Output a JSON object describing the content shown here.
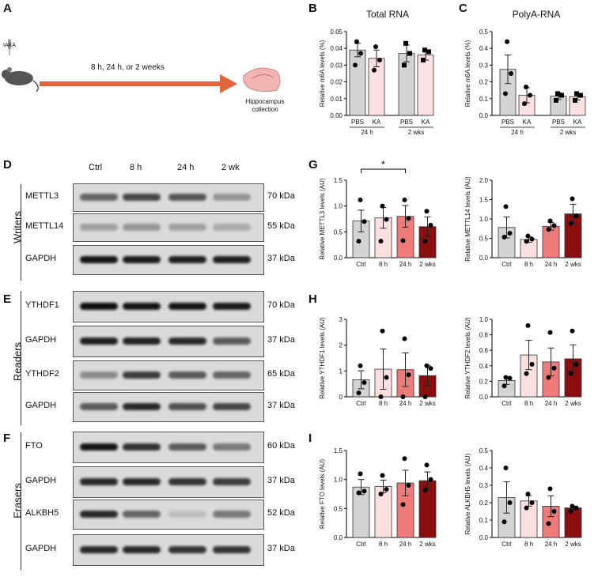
{
  "panels": {
    "a": "A",
    "b": "B",
    "c": "C",
    "d": "D",
    "e": "E",
    "f": "F",
    "g": "G",
    "h": "H",
    "i": "I"
  },
  "schematic": {
    "injection": "IAKA",
    "timepoints": "8 h, 24 h, or 2 weeks",
    "endpoint": "Hippocampus collection",
    "colors": {
      "arrow": "#e0643c",
      "brain": "#f1b5b1",
      "mouse": "#555555"
    }
  },
  "blots": {
    "lanes": [
      "Ctrl",
      "8 h",
      "24 h",
      "2 wk"
    ],
    "groups": [
      "Writers",
      "Readers",
      "Erasers"
    ],
    "rows": [
      {
        "name": "METTL3",
        "kda": "70 kDa",
        "intensity": [
          0.55,
          0.7,
          0.62,
          0.3
        ]
      },
      {
        "name": "METTL14",
        "kda": "55 kDa",
        "intensity": [
          0.25,
          0.3,
          0.25,
          0.2
        ]
      },
      {
        "name": "GAPDH",
        "kda": "37 kDa",
        "intensity": [
          0.95,
          0.92,
          0.9,
          0.9
        ]
      },
      {
        "name": "YTHDF1",
        "kda": "70 kDa",
        "intensity": [
          0.98,
          0.95,
          0.95,
          0.92
        ]
      },
      {
        "name": "GAPDH",
        "kda": "37 kDa",
        "intensity": [
          0.9,
          0.88,
          0.85,
          0.6
        ]
      },
      {
        "name": "YTHDF2",
        "kda": "65 kDa",
        "intensity": [
          0.35,
          0.75,
          0.6,
          0.55
        ]
      },
      {
        "name": "GAPDH",
        "kda": "37 kDa",
        "intensity": [
          0.6,
          0.85,
          0.65,
          0.7
        ]
      },
      {
        "name": "FTO",
        "kda": "60 kDa",
        "intensity": [
          0.95,
          0.8,
          0.6,
          0.45
        ]
      },
      {
        "name": "GAPDH",
        "kda": "37 kDa",
        "intensity": [
          0.85,
          0.85,
          0.8,
          0.75
        ]
      },
      {
        "name": "ALKBH5",
        "kda": "52 kDa",
        "intensity": [
          0.85,
          0.55,
          0.1,
          0.45
        ]
      },
      {
        "name": "GAPDH",
        "kda": "37 kDa",
        "intensity": [
          0.85,
          0.85,
          0.8,
          0.8
        ]
      }
    ]
  },
  "chart_data": [
    {
      "id": "total-rna",
      "type": "bar",
      "title": "Total RNA",
      "ylabel": "Relative m6A levels (%)",
      "categories": [
        "PBS",
        "KA",
        "PBS",
        "KA"
      ],
      "groups": [
        "24 h",
        "2 wks"
      ],
      "values": [
        0.039,
        0.034,
        0.037,
        0.036
      ],
      "errors": [
        0.004,
        0.005,
        0.005,
        0.003
      ],
      "points": [
        [
          0.044,
          0.037,
          0.03
        ],
        [
          0.041,
          0.033,
          0.027
        ],
        [
          0.043,
          0.037,
          0.03
        ],
        [
          0.039,
          0.038,
          0.033
        ]
      ],
      "colors": [
        "#d3d3d3",
        "#fbe1e1",
        "#d3d3d3",
        "#fbe1e1"
      ],
      "markers": [
        "circle",
        "circle",
        "square",
        "square"
      ],
      "ylim": [
        0,
        0.05
      ],
      "yticks": [
        "0.00",
        "0.01",
        "0.02",
        "0.03",
        "0.04",
        "0.05"
      ]
    },
    {
      "id": "polya-rna",
      "type": "bar",
      "title": "PolyA-RNA",
      "ylabel": "Relative m6A levels (%)",
      "categories": [
        "PBS",
        "KA",
        "PBS",
        "KA"
      ],
      "groups": [
        "24 h",
        "2 wks"
      ],
      "values": [
        0.275,
        0.12,
        0.115,
        0.112
      ],
      "errors": [
        0.085,
        0.045,
        0.02,
        0.02
      ],
      "points": [
        [
          0.44,
          0.25,
          0.13
        ],
        [
          0.17,
          0.12,
          0.07
        ],
        [
          0.13,
          0.12,
          0.09
        ],
        [
          0.13,
          0.12,
          0.09
        ]
      ],
      "colors": [
        "#d3d3d3",
        "#fbe1e1",
        "#d3d3d3",
        "#fbe1e1"
      ],
      "markers": [
        "circle",
        "circle",
        "square",
        "square"
      ],
      "ylim": [
        0,
        0.5
      ],
      "yticks": [
        "0.0",
        "0.1",
        "0.2",
        "0.3",
        "0.4",
        "0.5"
      ]
    },
    {
      "id": "mettl3",
      "type": "bar",
      "ylabel": "Relative METTL3 levels (AU)",
      "categories": [
        "Ctrl",
        "8 h",
        "24 h",
        "2 wks"
      ],
      "values": [
        0.71,
        0.77,
        0.8,
        0.6
      ],
      "errors": [
        0.21,
        0.2,
        0.21,
        0.19
      ],
      "points": [
        [
          1.12,
          0.7,
          0.32
        ],
        [
          1.0,
          0.74,
          0.32
        ],
        [
          1.12,
          0.76,
          0.33
        ],
        [
          0.9,
          0.63,
          0.32
        ]
      ],
      "colors": [
        "#d3d3d3",
        "#fce0e0",
        "#ee7a79",
        "#8b0d0d"
      ],
      "ylim": [
        0,
        1.5
      ],
      "yticks": [
        "0.0",
        "0.5",
        "1.0",
        "1.5"
      ],
      "significance": {
        "label": "*",
        "from": 0,
        "to": 2
      }
    },
    {
      "id": "mettl14",
      "type": "bar",
      "ylabel": "Relative METTL14 levels (AU)",
      "categories": [
        "Ctrl",
        "8 h",
        "24 h",
        "2 wks"
      ],
      "values": [
        0.78,
        0.47,
        0.81,
        1.13
      ],
      "errors": [
        0.27,
        0.07,
        0.1,
        0.25
      ],
      "points": [
        [
          1.32,
          0.63,
          0.53
        ],
        [
          0.56,
          0.48,
          0.42
        ],
        [
          0.95,
          0.83,
          0.73
        ],
        [
          1.52,
          1.08,
          0.88
        ]
      ],
      "colors": [
        "#d3d3d3",
        "#fce0e0",
        "#ee7a79",
        "#8b0d0d"
      ],
      "ylim": [
        0,
        2.0
      ],
      "yticks": [
        "0.0",
        "0.5",
        "1.0",
        "1.5",
        "2.0"
      ]
    },
    {
      "id": "ythdf1",
      "type": "bar",
      "ylabel": "Relative YTHDF1 levels (AU)",
      "categories": [
        "Ctrl",
        "8 h",
        "24 h",
        "2 wks"
      ],
      "values": [
        0.66,
        1.07,
        1.05,
        0.82
      ],
      "errors": [
        0.35,
        0.78,
        0.65,
        0.4
      ],
      "points": [
        [
          1.2,
          0.55,
          0.15
        ],
        [
          2.55,
          0.75,
          0.0
        ],
        [
          2.25,
          0.85,
          0.0
        ],
        [
          1.2,
          1.1,
          0.0
        ]
      ],
      "colors": [
        "#d3d3d3",
        "#fce0e0",
        "#ee7a79",
        "#8b0d0d"
      ],
      "ylim": [
        0,
        3
      ],
      "yticks": [
        "0",
        "1",
        "2",
        "3"
      ]
    },
    {
      "id": "ythdf2",
      "type": "bar",
      "ylabel": "Relative YTHDF2 levels (AU)",
      "categories": [
        "Ctrl",
        "8 h",
        "24 h",
        "2 wks"
      ],
      "values": [
        0.21,
        0.54,
        0.45,
        0.49
      ],
      "errors": [
        0.05,
        0.19,
        0.18,
        0.18
      ],
      "points": [
        [
          0.25,
          0.24,
          0.14
        ],
        [
          0.92,
          0.42,
          0.3
        ],
        [
          0.83,
          0.37,
          0.25
        ],
        [
          0.85,
          0.42,
          0.3
        ]
      ],
      "colors": [
        "#d3d3d3",
        "#fce0e0",
        "#ee7a79",
        "#8b0d0d"
      ],
      "ylim": [
        0,
        1.0
      ],
      "yticks": [
        "0.0",
        "0.2",
        "0.4",
        "0.6",
        "0.8",
        "1.0"
      ]
    },
    {
      "id": "fto",
      "type": "bar",
      "ylabel": "Relative FTO levels (AU)",
      "categories": [
        "Ctrl",
        "8 h",
        "24 h",
        "2 wks"
      ],
      "values": [
        0.87,
        0.88,
        0.94,
        0.98
      ],
      "errors": [
        0.13,
        0.11,
        0.22,
        0.15
      ],
      "points": [
        [
          1.1,
          0.8,
          0.77
        ],
        [
          1.07,
          0.83,
          0.75
        ],
        [
          1.36,
          0.9,
          0.57
        ],
        [
          1.25,
          1.0,
          0.82
        ]
      ],
      "colors": [
        "#d3d3d3",
        "#fce0e0",
        "#ee7a79",
        "#8b0d0d"
      ],
      "ylim": [
        0,
        1.5
      ],
      "yticks": [
        "0.0",
        "0.5",
        "1.0",
        "1.5"
      ]
    },
    {
      "id": "alkbh5",
      "type": "bar",
      "ylabel": "Relative ALKBH5 levels (AU)",
      "categories": [
        "Ctrl",
        "8 h",
        "24 h",
        "2 wks"
      ],
      "values": [
        0.23,
        0.21,
        0.18,
        0.17
      ],
      "errors": [
        0.09,
        0.03,
        0.06,
        0.01
      ],
      "points": [
        [
          0.4,
          0.2,
          0.09
        ],
        [
          0.25,
          0.2,
          0.17
        ],
        [
          0.28,
          0.15,
          0.08
        ],
        [
          0.18,
          0.17,
          0.15
        ]
      ],
      "colors": [
        "#d3d3d3",
        "#fce0e0",
        "#ee7a79",
        "#8b0d0d"
      ],
      "ylim": [
        0,
        0.5
      ],
      "yticks": [
        "0.0",
        "0.1",
        "0.2",
        "0.3",
        "0.4",
        "0.5"
      ]
    }
  ]
}
